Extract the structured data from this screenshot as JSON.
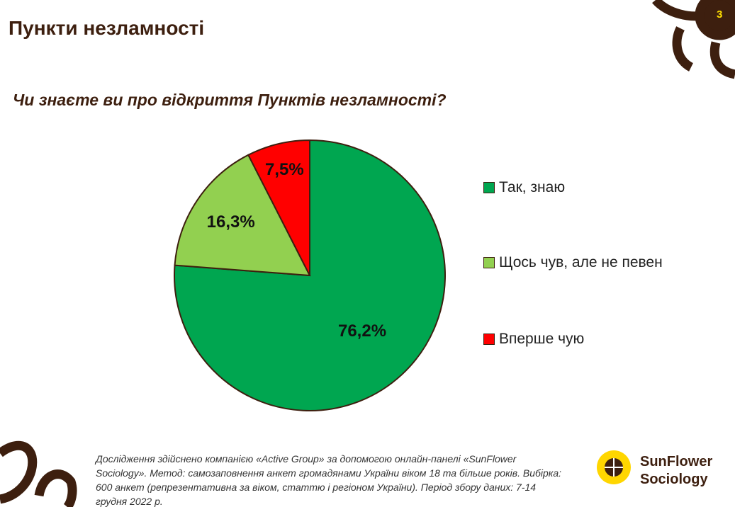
{
  "page_number": "3",
  "header": {
    "title": "Пункти незламності"
  },
  "chart_data": {
    "type": "pie",
    "title": "Чи знаєте ви про відкриття Пунктів незламності?",
    "categories": [
      "Так, знаю",
      "Щось чув, але не певен",
      "Вперше чую"
    ],
    "values": [
      76.2,
      16.3,
      7.5
    ],
    "value_labels": [
      "76,2%",
      "16,3%",
      "7,5%"
    ],
    "colors": [
      "#00a650",
      "#92d050",
      "#ff0000"
    ]
  },
  "footnote": "Дослідження здійснено компанією «Active Group» за допомогою онлайн-панелі «SunFlower Sociology». Метод: самозаповнення анкет громадянами України віком 18 та більше років. Вибірка: 600 анкет (репрезентативна за віком, статтю і регіоном України). Період збору даних: 7-14 грудня 2022 р.",
  "logo": {
    "line1": "SunFlower",
    "line2": "Sociology"
  }
}
